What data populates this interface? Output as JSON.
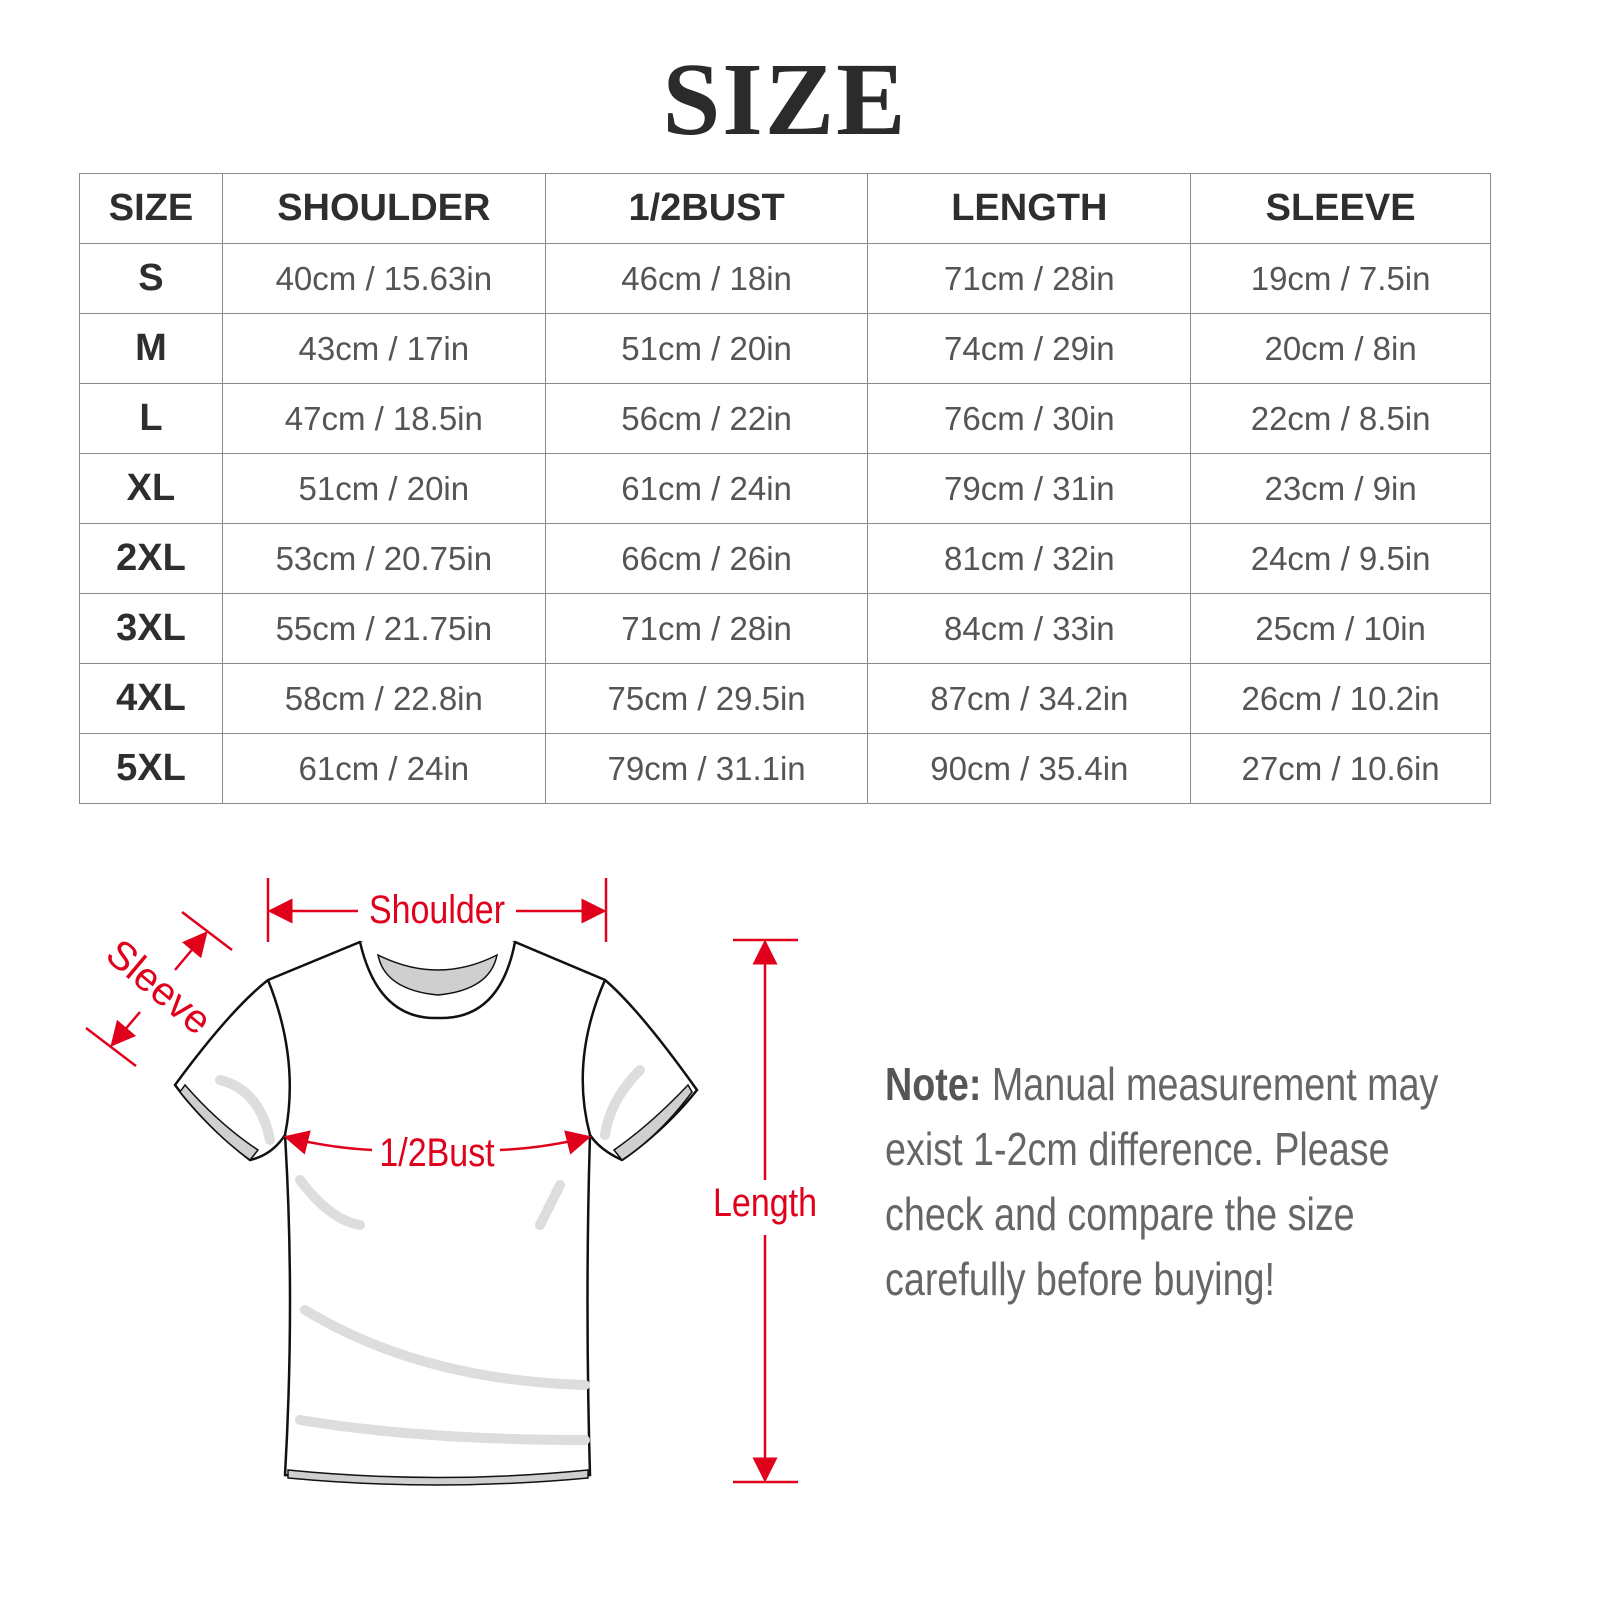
{
  "title": "SIZE",
  "table": {
    "headers": [
      "SIZE",
      "SHOULDER",
      "1/2BUST",
      "LENGTH",
      "SLEEVE"
    ],
    "rows": [
      [
        "S",
        "40cm / 15.63in",
        "46cm / 18in",
        "71cm / 28in",
        "19cm / 7.5in"
      ],
      [
        "M",
        "43cm / 17in",
        "51cm / 20in",
        "74cm / 29in",
        "20cm / 8in"
      ],
      [
        "L",
        "47cm / 18.5in",
        "56cm / 22in",
        "76cm / 30in",
        "22cm / 8.5in"
      ],
      [
        "XL",
        "51cm / 20in",
        "61cm / 24in",
        "79cm / 31in",
        "23cm / 9in"
      ],
      [
        "2XL",
        "53cm / 20.75in",
        "66cm / 26in",
        "81cm / 32in",
        "24cm / 9.5in"
      ],
      [
        "3XL",
        "55cm / 21.75in",
        "71cm / 28in",
        "84cm / 33in",
        "25cm / 10in"
      ],
      [
        "4XL",
        "58cm / 22.8in",
        "75cm / 29.5in",
        "87cm / 34.2in",
        "26cm / 10.2in"
      ],
      [
        "5XL",
        "61cm / 24in",
        "79cm / 31.1in",
        "90cm / 35.4in",
        "27cm / 10.6in"
      ]
    ]
  },
  "diagram": {
    "labels": {
      "shoulder": "Shoulder",
      "sleeve": "Sleeve",
      "bust": "1/2Bust",
      "length": "Length"
    },
    "accent_color": "#e0001b"
  },
  "note": {
    "label": "Note:",
    "text": " Manual measurement may exist 1-2cm difference. Please check and compare the size carefully before buying!"
  }
}
